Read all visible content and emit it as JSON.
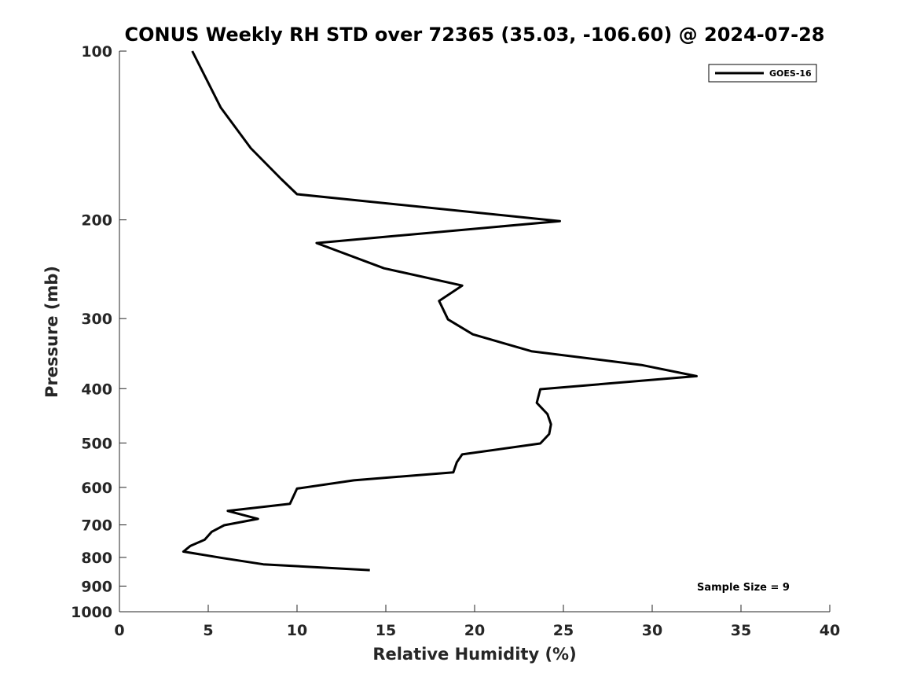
{
  "chart_data": {
    "type": "line",
    "title": "CONUS Weekly RH STD over 72365 (35.03, -106.60) @ 2024-07-28",
    "xlabel": "Relative Humidity (%)",
    "ylabel": "Pressure (mb)",
    "x_scale": "linear",
    "y_scale": "log",
    "y_inverted": true,
    "xlim": [
      0,
      40
    ],
    "ylim": [
      100,
      1000
    ],
    "x_ticks": [
      0,
      5,
      10,
      15,
      20,
      25,
      30,
      35,
      40
    ],
    "x_tick_labels": [
      "0",
      "5",
      "10",
      "15",
      "20",
      "25",
      "30",
      "35",
      "40"
    ],
    "y_ticks": [
      100,
      200,
      300,
      400,
      500,
      600,
      700,
      800,
      900,
      1000
    ],
    "y_tick_labels": [
      "100",
      "200",
      "300",
      "400",
      "500",
      "600",
      "700",
      "800",
      "900",
      "1000"
    ],
    "grid": false,
    "legend_position": "top-right",
    "annotation": "Sample Size = 9",
    "series": [
      {
        "name": "GOES-16",
        "color": "#000000",
        "points": [
          {
            "x": 4.1,
            "p": 100
          },
          {
            "x": 5.7,
            "p": 126
          },
          {
            "x": 7.4,
            "p": 149
          },
          {
            "x": 9.1,
            "p": 169
          },
          {
            "x": 10.0,
            "p": 180
          },
          {
            "x": 24.8,
            "p": 201
          },
          {
            "x": 11.1,
            "p": 220
          },
          {
            "x": 14.9,
            "p": 244
          },
          {
            "x": 19.3,
            "p": 262
          },
          {
            "x": 18.0,
            "p": 279
          },
          {
            "x": 18.5,
            "p": 301
          },
          {
            "x": 19.9,
            "p": 320
          },
          {
            "x": 23.2,
            "p": 343
          },
          {
            "x": 29.4,
            "p": 363
          },
          {
            "x": 32.5,
            "p": 380
          },
          {
            "x": 23.7,
            "p": 401
          },
          {
            "x": 23.5,
            "p": 424
          },
          {
            "x": 24.1,
            "p": 444
          },
          {
            "x": 24.3,
            "p": 463
          },
          {
            "x": 24.2,
            "p": 482
          },
          {
            "x": 23.7,
            "p": 501
          },
          {
            "x": 19.3,
            "p": 524
          },
          {
            "x": 19.0,
            "p": 541
          },
          {
            "x": 18.8,
            "p": 564
          },
          {
            "x": 13.2,
            "p": 583
          },
          {
            "x": 10.0,
            "p": 603
          },
          {
            "x": 9.6,
            "p": 642
          },
          {
            "x": 6.1,
            "p": 661
          },
          {
            "x": 7.8,
            "p": 683
          },
          {
            "x": 5.9,
            "p": 701
          },
          {
            "x": 5.2,
            "p": 720
          },
          {
            "x": 4.8,
            "p": 744
          },
          {
            "x": 4.0,
            "p": 763
          },
          {
            "x": 3.6,
            "p": 781
          },
          {
            "x": 5.8,
            "p": 802
          },
          {
            "x": 8.1,
            "p": 823
          },
          {
            "x": 14.1,
            "p": 843
          }
        ]
      }
    ]
  }
}
